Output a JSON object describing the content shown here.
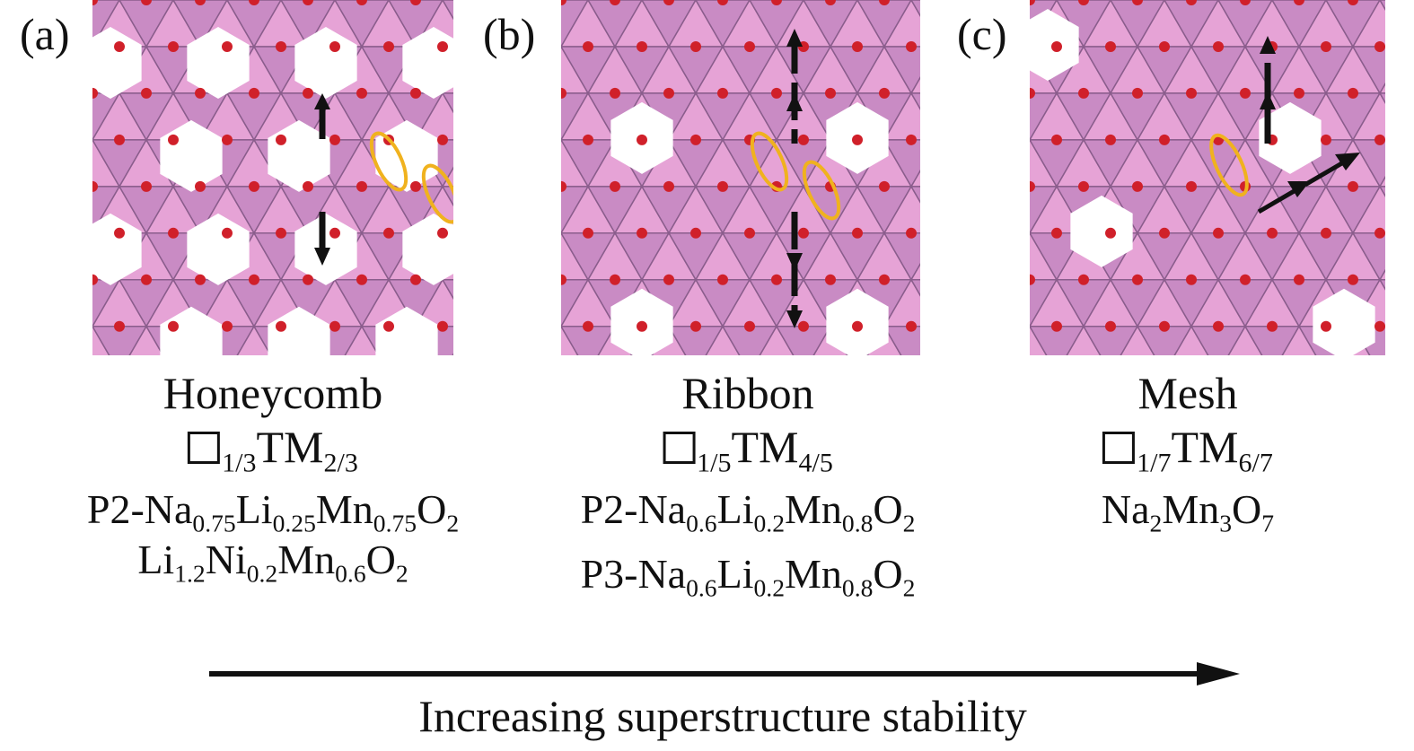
{
  "panels": [
    {
      "label": "(a)",
      "structure": "Honeycomb",
      "vacancy_formula": {
        "vac_sub": "1/3",
        "tm": "TM",
        "tm_sub": "2/3"
      },
      "formulas": [
        [
          [
            "P2-Na",
            "0.75"
          ],
          [
            "Li",
            "0.25"
          ],
          [
            "Mn",
            "0.75"
          ],
          [
            "O",
            "2"
          ]
        ],
        [
          [
            "Li",
            "1.2"
          ],
          [
            "Ni",
            "0.2"
          ],
          [
            "Mn",
            "0.6"
          ],
          [
            "O",
            "2"
          ]
        ]
      ]
    },
    {
      "label": "(b)",
      "structure": "Ribbon",
      "vacancy_formula": {
        "vac_sub": "1/5",
        "tm": "TM",
        "tm_sub": "4/5"
      },
      "formulas": [
        [
          [
            "P2-Na",
            "0.6"
          ],
          [
            "Li",
            "0.2"
          ],
          [
            "Mn",
            "0.8"
          ],
          [
            "O",
            "2"
          ]
        ],
        [
          [
            "P3-Na",
            "0.6"
          ],
          [
            "Li",
            "0.2"
          ],
          [
            "Mn",
            "0.8"
          ],
          [
            "O",
            "2"
          ]
        ]
      ]
    },
    {
      "label": "(c)",
      "structure": "Mesh",
      "vacancy_formula": {
        "vac_sub": "1/7",
        "tm": "TM",
        "tm_sub": "6/7"
      },
      "formulas": [
        [
          [
            "Na",
            "2"
          ],
          [
            "Mn",
            "3"
          ],
          [
            "O",
            "7"
          ]
        ]
      ]
    }
  ],
  "trend_label": "Increasing superstructure stability",
  "colors": {
    "octahedron": "#e6a3d6",
    "octahedron_dark": "#8a5d8c",
    "oxygen": "#d0202a",
    "highlight": "#f0b21e",
    "arrow": "#111111"
  }
}
